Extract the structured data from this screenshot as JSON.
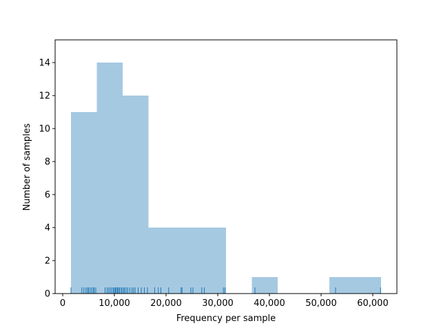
{
  "chart_data": {
    "type": "histogram",
    "xlabel": "Frequency per sample",
    "ylabel": "Number of samples",
    "bins": [
      1600,
      6600,
      11600,
      16600,
      21600,
      26600,
      31600,
      36600,
      41600,
      46600,
      51600,
      56600,
      61600
    ],
    "counts": [
      11,
      14,
      12,
      4,
      4,
      4,
      0,
      1,
      0,
      0,
      1,
      1
    ],
    "color": "#a6c9e2",
    "rug": [
      1600,
      3700,
      4100,
      4500,
      4800,
      5000,
      5300,
      5600,
      5900,
      6100,
      6400,
      8200,
      8600,
      8900,
      9200,
      9500,
      9800,
      10000,
      10200,
      10400,
      10600,
      10800,
      11000,
      11300,
      11500,
      11800,
      12000,
      12300,
      12600,
      13000,
      13400,
      13700,
      14000,
      14600,
      15200,
      15800,
      16400,
      17800,
      18500,
      19000,
      20500,
      22900,
      23100,
      24800,
      25200,
      26900,
      27400,
      31100,
      31400,
      37200,
      52800,
      61500
    ],
    "rug_color": "#1f77b4",
    "xlim": [
      -1467,
      64667
    ],
    "ylim": [
      0,
      15.375
    ],
    "xticks": [
      0,
      {
        "value": 10000,
        "label": "10,000"
      },
      {
        "value": 20000,
        "label": "20,000"
      },
      {
        "value": 30000,
        "label": "30,000"
      },
      {
        "value": 40000,
        "label": "40,000"
      },
      {
        "value": 50000,
        "label": "50,000"
      },
      {
        "value": 60000,
        "label": "60,000"
      }
    ],
    "yticks": [
      0,
      2,
      4,
      6,
      8,
      10,
      12,
      14
    ]
  }
}
